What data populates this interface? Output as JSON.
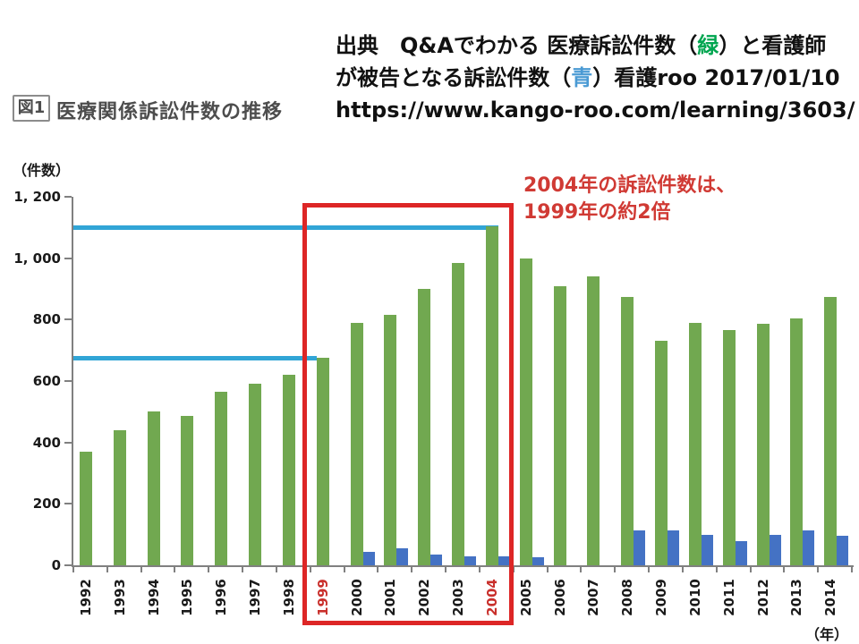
{
  "source_note": {
    "lines": [
      {
        "parts": [
          {
            "text": "出典　Q&Aでわかる 医療訴訟件数（",
            "color": "#111111"
          },
          {
            "text": "緑",
            "color": "#00a650"
          },
          {
            "text": "）と看護師",
            "color": "#111111"
          }
        ]
      },
      {
        "parts": [
          {
            "text": "が被告となる訴訟件数（",
            "color": "#111111"
          },
          {
            "text": "青",
            "color": "#4a9ad4"
          },
          {
            "text": "）看護roo 2017/01/10",
            "color": "#111111"
          }
        ]
      },
      {
        "parts": [
          {
            "text": "https://www.kango-roo.com/learning/3603/",
            "color": "#111111"
          }
        ]
      }
    ]
  },
  "figure": {
    "label": "図1",
    "title": "医療関係訴訟件数の推移"
  },
  "chart_data": {
    "type": "bar",
    "title": "医療関係訴訟件数の推移",
    "ylabel": "（件数）",
    "xlabel": "（年）",
    "ylim": [
      0,
      1200
    ],
    "grid": false,
    "legend": "none",
    "y_tick_values": [
      0,
      200,
      400,
      600,
      800,
      1000,
      1200
    ],
    "y_tick_labels": [
      "0",
      "200",
      "400",
      "600",
      "800",
      "1, 000",
      "1, 200"
    ],
    "categories": [
      "1992",
      "1993",
      "1994",
      "1995",
      "1996",
      "1997",
      "1998",
      "1999",
      "2000",
      "2001",
      "2002",
      "2003",
      "2004",
      "2005",
      "2006",
      "2007",
      "2008",
      "2009",
      "2010",
      "2011",
      "2012",
      "2013",
      "2014"
    ],
    "highlighted_categories": [
      "1999",
      "2004"
    ],
    "highlight_color": "#c9302c",
    "series": [
      {
        "name": "医療訴訟件数（緑）",
        "color": "#71a850",
        "values": [
          370,
          440,
          500,
          485,
          565,
          590,
          620,
          675,
          790,
          815,
          900,
          985,
          1105,
          1000,
          910,
          940,
          875,
          730,
          790,
          765,
          785,
          805,
          875
        ]
      },
      {
        "name": "看護師が被告となる訴訟件数（青）",
        "color": "#4472c4",
        "values": [
          0,
          0,
          0,
          0,
          0,
          0,
          0,
          0,
          45,
          55,
          35,
          30,
          30,
          25,
          0,
          0,
          115,
          115,
          100,
          80,
          100,
          115,
          95
        ]
      }
    ],
    "reference_lines": [
      {
        "value": 1100,
        "end_category": "2004",
        "end_side": "right",
        "color": "#31a5d6"
      },
      {
        "value": 675,
        "end_category": "1999",
        "end_side": "left",
        "color": "#31a5d6"
      }
    ],
    "annotation": {
      "lines": [
        "2004年の訴訟件数は、",
        "1999年の約2倍"
      ],
      "color": "#d03a34"
    },
    "highlight_box": {
      "from_category": "1999",
      "to_category": "2004",
      "color": "#dd2626"
    }
  }
}
